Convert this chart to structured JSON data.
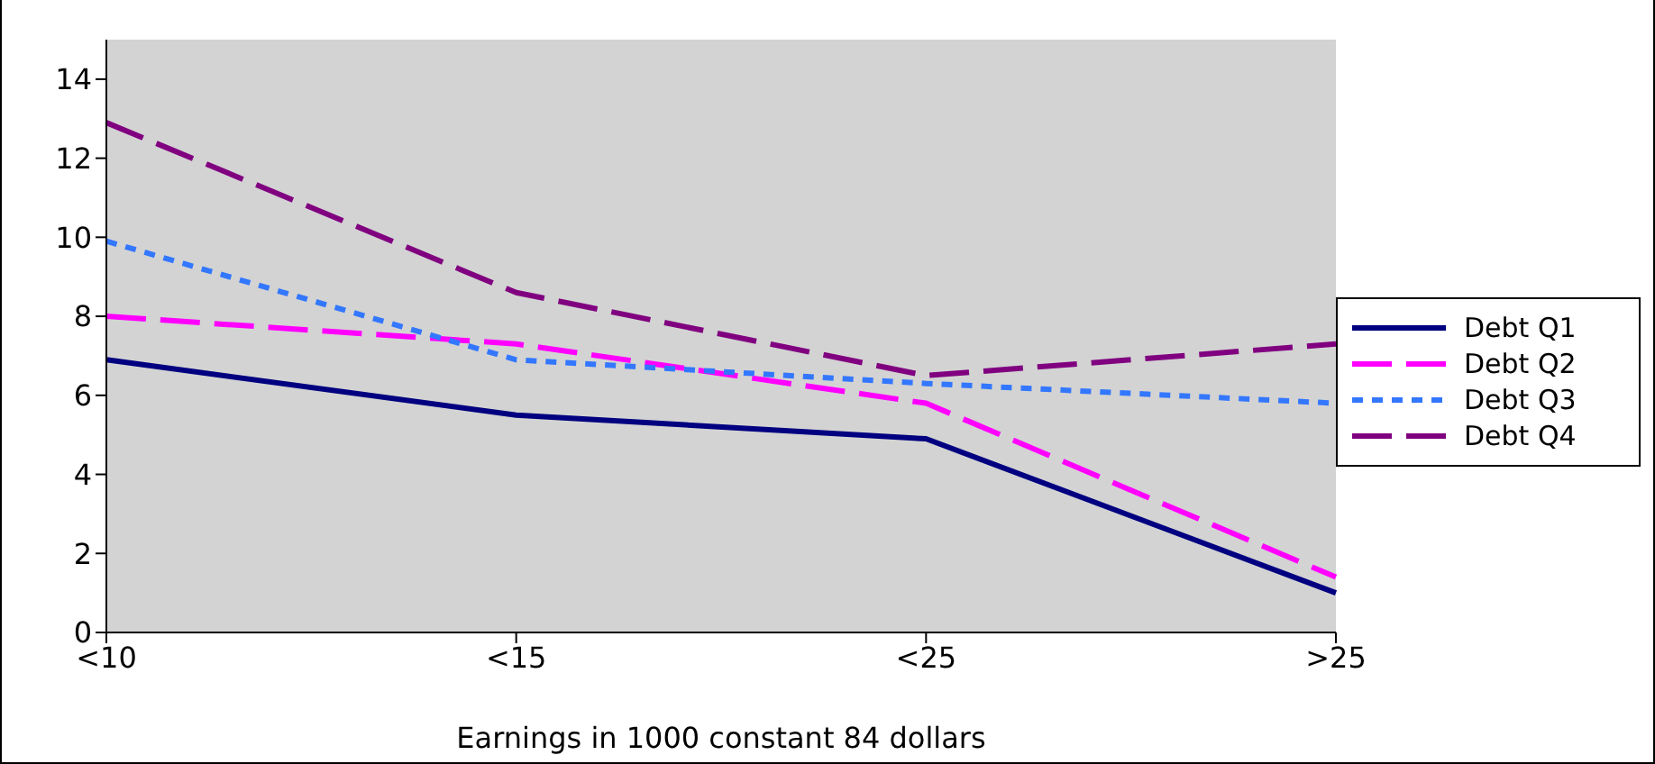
{
  "chart_data": {
    "type": "line",
    "xlabel": "Earnings in 1000 constant 84 dollars",
    "categories": [
      "<10",
      "<15",
      "<25",
      ">25"
    ],
    "series": [
      {
        "name": "Debt Q1",
        "color": "#000080",
        "line_style": "solid",
        "values": [
          6.9,
          5.5,
          4.9,
          1.0
        ]
      },
      {
        "name": "Debt Q2",
        "color": "#ff00ff",
        "line_style": "dashed",
        "values": [
          8.0,
          7.3,
          5.8,
          1.4
        ]
      },
      {
        "name": "Debt Q3",
        "color": "#3377ff",
        "line_style": "dotted",
        "values": [
          9.9,
          6.9,
          6.3,
          5.8
        ]
      },
      {
        "name": "Debt Q4",
        "color": "#800080",
        "line_style": "dashed",
        "values": [
          12.9,
          8.6,
          6.5,
          7.3
        ]
      }
    ],
    "ylim": [
      0,
      15
    ],
    "yticks": [
      0,
      2,
      4,
      6,
      8,
      10,
      12,
      14
    ],
    "grid": false,
    "legend": "right",
    "marker": "none"
  }
}
